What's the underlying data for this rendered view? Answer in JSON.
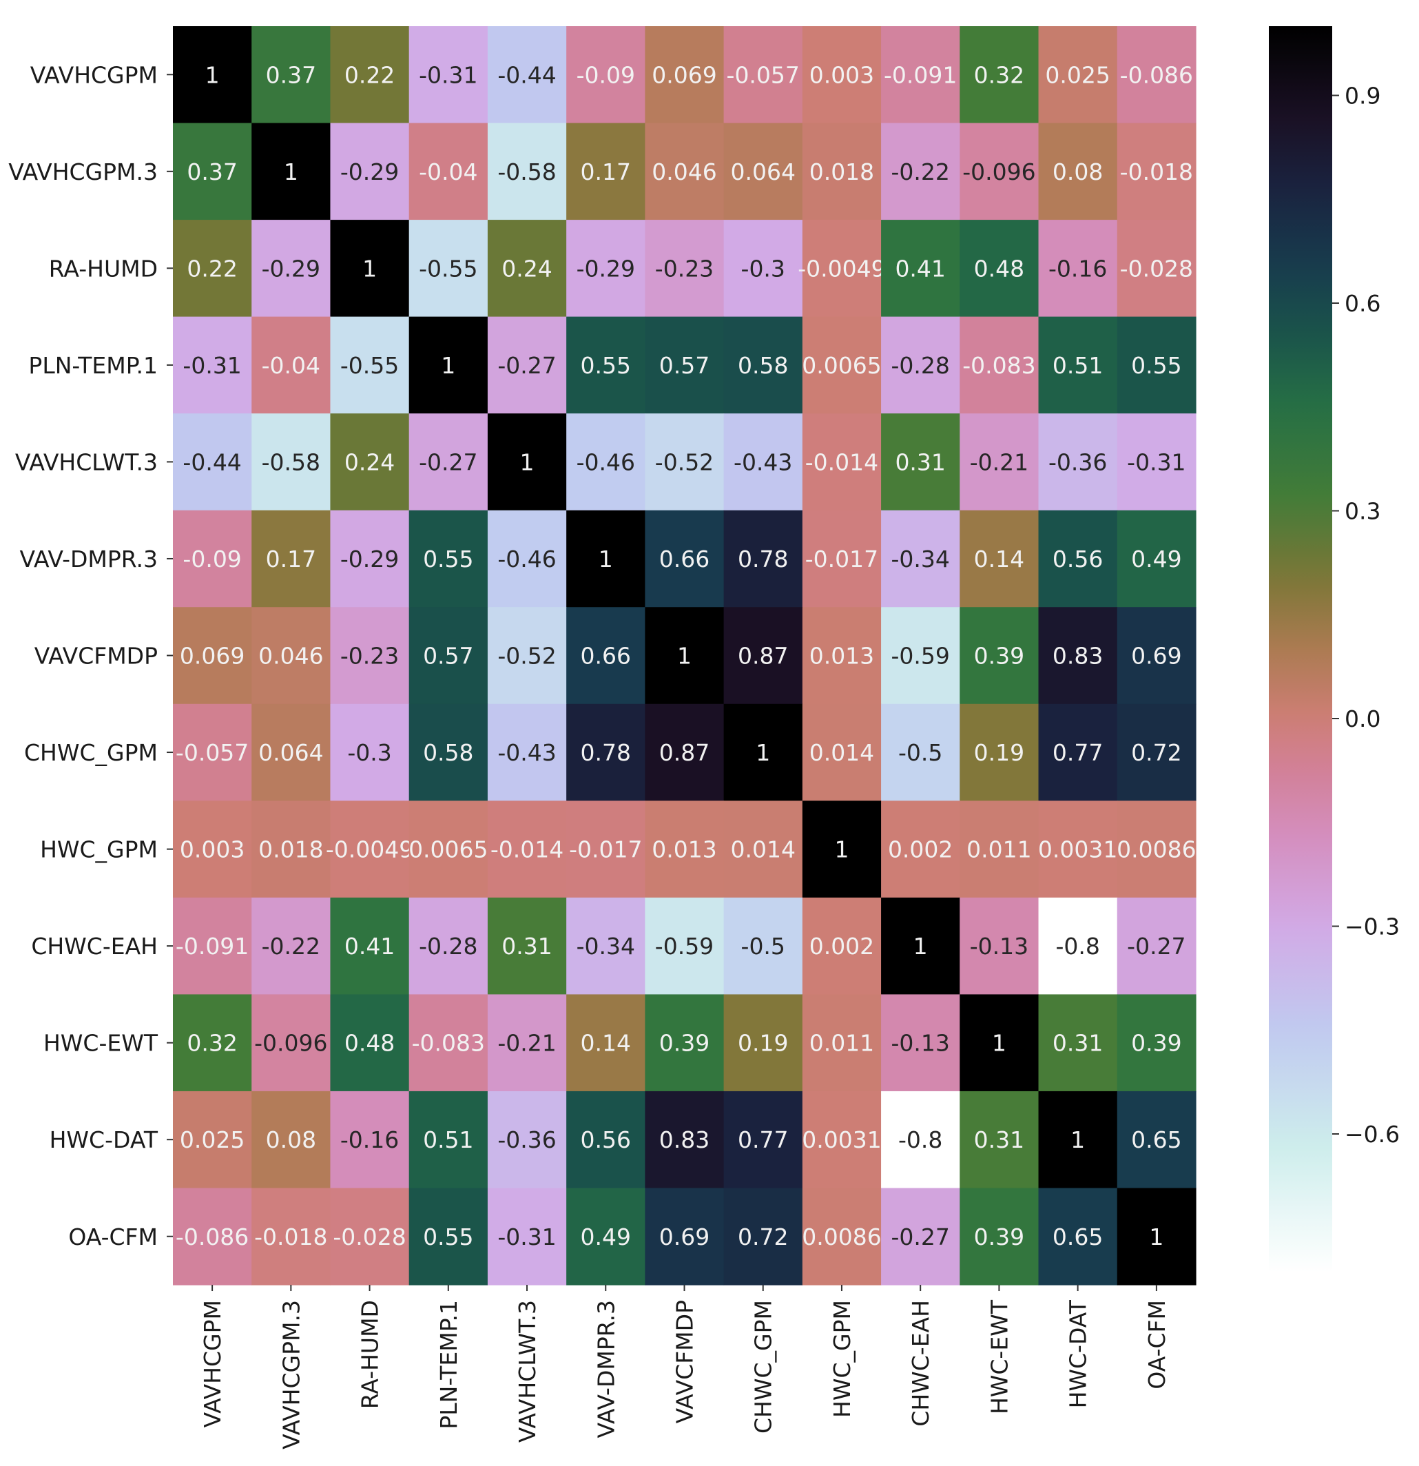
{
  "chart_data": {
    "type": "heatmap",
    "title": "",
    "colormap": "cubehelix_r",
    "vmin": -0.8,
    "vmax": 1.0,
    "labels": [
      "VAVHCGPM",
      "VAVHCGPM.3",
      "RA-HUMD",
      "PLN-TEMP.1",
      "VAVHCLWT.3",
      "VAV-DMPR.3",
      "VAVCFMDP",
      "CHWC_GPM",
      "HWC_GPM",
      "CHWC-EAH",
      "HWC-EWT",
      "HWC-DAT",
      "OA-CFM"
    ],
    "matrix": [
      [
        1,
        0.37,
        0.22,
        -0.31,
        -0.44,
        -0.09,
        0.069,
        -0.057,
        0.003,
        -0.091,
        0.32,
        0.025,
        -0.086
      ],
      [
        0.37,
        1,
        -0.29,
        -0.04,
        -0.58,
        0.17,
        0.046,
        0.064,
        0.018,
        -0.22,
        -0.096,
        0.08,
        -0.018
      ],
      [
        0.22,
        -0.29,
        1,
        -0.55,
        0.24,
        -0.29,
        -0.23,
        -0.3,
        -0.0049,
        0.41,
        0.48,
        -0.16,
        -0.028
      ],
      [
        -0.31,
        -0.04,
        -0.55,
        1,
        -0.27,
        0.55,
        0.57,
        0.58,
        0.0065,
        -0.28,
        -0.083,
        0.51,
        0.55
      ],
      [
        -0.44,
        -0.58,
        0.24,
        -0.27,
        1,
        -0.46,
        -0.52,
        -0.43,
        -0.014,
        0.31,
        -0.21,
        -0.36,
        -0.31
      ],
      [
        -0.09,
        0.17,
        -0.29,
        0.55,
        -0.46,
        1,
        0.66,
        0.78,
        -0.017,
        -0.34,
        0.14,
        0.56,
        0.49
      ],
      [
        0.069,
        0.046,
        -0.23,
        0.57,
        -0.52,
        0.66,
        1,
        0.87,
        0.013,
        -0.59,
        0.39,
        0.83,
        0.69
      ],
      [
        -0.057,
        0.064,
        -0.3,
        0.58,
        -0.43,
        0.78,
        0.87,
        1,
        0.014,
        -0.5,
        0.19,
        0.77,
        0.72
      ],
      [
        0.003,
        0.018,
        -0.0049,
        0.0065,
        -0.014,
        -0.017,
        0.013,
        0.014,
        1,
        0.002,
        0.011,
        0.0031,
        0.0086
      ],
      [
        -0.091,
        -0.22,
        0.41,
        -0.28,
        0.31,
        -0.34,
        -0.59,
        -0.5,
        0.002,
        1,
        -0.13,
        -0.8,
        -0.27
      ],
      [
        0.32,
        -0.096,
        0.48,
        -0.083,
        -0.21,
        0.14,
        0.39,
        0.19,
        0.011,
        -0.13,
        1,
        0.31,
        0.39
      ],
      [
        0.025,
        0.08,
        -0.16,
        0.51,
        -0.36,
        0.56,
        0.83,
        0.77,
        0.0031,
        -0.8,
        0.31,
        1,
        0.65
      ],
      [
        -0.086,
        -0.018,
        -0.028,
        0.55,
        -0.31,
        0.49,
        0.69,
        0.72,
        0.0086,
        -0.27,
        0.39,
        0.65,
        1
      ]
    ],
    "colorbar": {
      "ticks": [
        0.9,
        0.6,
        0.3,
        0.0,
        -0.3,
        -0.6
      ],
      "tick_labels": [
        "0.9",
        "0.6",
        "0.3",
        "0.0",
        "−0.3",
        "−0.6"
      ]
    }
  }
}
